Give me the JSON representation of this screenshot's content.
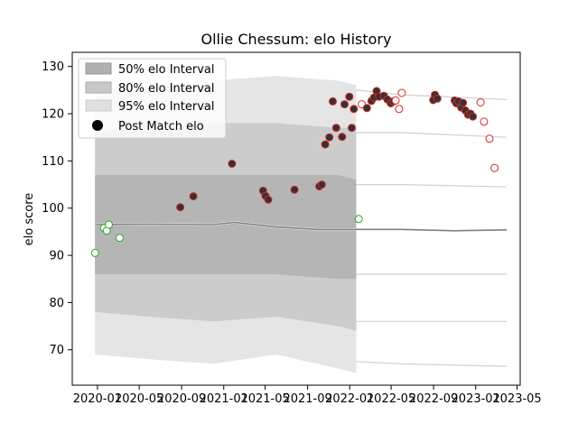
{
  "chart_data": {
    "type": "scatter",
    "title": "Ollie Chessum: elo History",
    "xlabel": "",
    "ylabel": "elo score",
    "xlim": [
      "2019-10-20",
      "2023-05-10"
    ],
    "ylim": [
      62.5,
      133
    ],
    "x_ticks": [
      "2020-01",
      "2020-05",
      "2020-09",
      "2021-01",
      "2021-05",
      "2021-09",
      "2022-01",
      "2022-05",
      "2022-09",
      "2023-01",
      "2023-05"
    ],
    "y_ticks": [
      70,
      80,
      90,
      100,
      110,
      120,
      130
    ],
    "legend": {
      "placement": "top-left",
      "entries": [
        {
          "label": "50% elo Interval",
          "color": "#b0b0b0"
        },
        {
          "label": "80% elo Interval",
          "color": "#c8c8c8"
        },
        {
          "label": "95% elo Interval",
          "color": "#e0e0e0"
        },
        {
          "label": "Post Match elo",
          "color": "#000000"
        }
      ]
    },
    "colors": {
      "win_edge": "#d62728",
      "loss_edge": "#2ca02c",
      "filled": "#333333",
      "band": "#bfbfbf",
      "line": "#808080"
    },
    "bands": [
      {
        "name": "95% elo Interval",
        "fill": "#e0e0e0",
        "x": [
          "2019-12-25",
          "2020-06-01",
          "2020-12-01",
          "2021-06-01",
          "2021-12-01",
          "2022-01-20"
        ],
        "lower": [
          69,
          68,
          67,
          69,
          66,
          65
        ],
        "upper": [
          125,
          126,
          127,
          128,
          127,
          126
        ]
      },
      {
        "name": "80% elo Interval",
        "fill": "#c8c8c8",
        "x": [
          "2019-12-25",
          "2020-06-01",
          "2020-12-01",
          "2021-06-01",
          "2021-12-01",
          "2022-01-20"
        ],
        "lower": [
          78,
          77,
          76,
          77,
          75,
          74
        ],
        "upper": [
          116,
          117,
          118,
          118,
          117,
          117
        ]
      },
      {
        "name": "50% elo Interval",
        "fill": "#b0b0b0",
        "x": [
          "2019-12-25",
          "2020-06-01",
          "2020-12-01",
          "2021-06-01",
          "2021-12-01",
          "2022-01-20"
        ],
        "lower": [
          86,
          86,
          86,
          86,
          85,
          85
        ],
        "upper": [
          107,
          107,
          107,
          107,
          107,
          106
        ]
      }
    ],
    "median_line": {
      "x": [
        "2019-12-25",
        "2020-06-01",
        "2020-12-01",
        "2021-02-01",
        "2021-06-01",
        "2021-10-01",
        "2022-01-01",
        "2022-06-01",
        "2022-11-01",
        "2023-04-01"
      ],
      "y": [
        96.5,
        96.6,
        96.5,
        97,
        96,
        95.5,
        95.5,
        95.5,
        95.2,
        95.4
      ]
    },
    "right_lines": [
      {
        "x": [
          "2022-01-20",
          "2022-06-01",
          "2023-04-01"
        ],
        "y": [
          125,
          124,
          123
        ]
      },
      {
        "x": [
          "2022-01-20",
          "2022-06-01",
          "2023-04-01"
        ],
        "y": [
          116,
          116,
          115
        ]
      },
      {
        "x": [
          "2022-01-20",
          "2022-06-01",
          "2023-04-01"
        ],
        "y": [
          105,
          105,
          104.5
        ]
      },
      {
        "x": [
          "2022-01-20",
          "2022-06-01",
          "2023-04-01"
        ],
        "y": [
          86,
          86,
          86
        ]
      },
      {
        "x": [
          "2022-01-20",
          "2022-06-01",
          "2023-04-01"
        ],
        "y": [
          76,
          76,
          76
        ]
      },
      {
        "x": [
          "2022-01-20",
          "2022-06-01",
          "2023-04-01"
        ],
        "y": [
          67.5,
          67,
          66.5
        ]
      }
    ],
    "points": [
      {
        "date": "2019-12-25",
        "elo": 90.5,
        "style": "loss"
      },
      {
        "date": "2020-01-20",
        "elo": 95.8,
        "style": "loss"
      },
      {
        "date": "2020-01-28",
        "elo": 95.2,
        "style": "loss"
      },
      {
        "date": "2020-02-03",
        "elo": 96.5,
        "style": "loss"
      },
      {
        "date": "2020-03-05",
        "elo": 93.7,
        "style": "loss"
      },
      {
        "date": "2020-08-28",
        "elo": 100.2,
        "style": "filled"
      },
      {
        "date": "2020-10-05",
        "elo": 102.5,
        "style": "filled"
      },
      {
        "date": "2021-01-25",
        "elo": 109.4,
        "style": "filled"
      },
      {
        "date": "2021-04-25",
        "elo": 103.7,
        "style": "filled"
      },
      {
        "date": "2021-05-02",
        "elo": 102.6,
        "style": "filled"
      },
      {
        "date": "2021-05-10",
        "elo": 101.8,
        "style": "filled"
      },
      {
        "date": "2021-07-25",
        "elo": 103.9,
        "style": "filled"
      },
      {
        "date": "2021-10-05",
        "elo": 104.6,
        "style": "filled"
      },
      {
        "date": "2021-10-12",
        "elo": 105.0,
        "style": "filled"
      },
      {
        "date": "2021-10-22",
        "elo": 113.5,
        "style": "filled"
      },
      {
        "date": "2021-11-03",
        "elo": 115.0,
        "style": "filled"
      },
      {
        "date": "2021-11-13",
        "elo": 122.6,
        "style": "filled"
      },
      {
        "date": "2021-11-23",
        "elo": 117.0,
        "style": "filled"
      },
      {
        "date": "2021-12-10",
        "elo": 115.1,
        "style": "filled"
      },
      {
        "date": "2021-12-17",
        "elo": 122.0,
        "style": "filled"
      },
      {
        "date": "2021-12-31",
        "elo": 123.6,
        "style": "filled"
      },
      {
        "date": "2022-01-07",
        "elo": 117.0,
        "style": "filled"
      },
      {
        "date": "2022-01-13",
        "elo": 121.0,
        "style": "filled"
      },
      {
        "date": "2022-02-05",
        "elo": 122.0,
        "style": "win"
      },
      {
        "date": "2022-02-20",
        "elo": 121.2,
        "style": "filled"
      },
      {
        "date": "2022-01-27",
        "elo": 97.7,
        "style": "loss"
      },
      {
        "date": "2022-03-05",
        "elo": 122.7,
        "style": "filled"
      },
      {
        "date": "2022-03-12",
        "elo": 123.4,
        "style": "filled"
      },
      {
        "date": "2022-03-20",
        "elo": 124.8,
        "style": "filled"
      },
      {
        "date": "2022-03-27",
        "elo": 123.6,
        "style": "filled"
      },
      {
        "date": "2022-04-10",
        "elo": 123.8,
        "style": "filled"
      },
      {
        "date": "2022-04-20",
        "elo": 123.0,
        "style": "filled"
      },
      {
        "date": "2022-04-30",
        "elo": 122.2,
        "style": "filled"
      },
      {
        "date": "2022-05-07",
        "elo": 122.6,
        "style": "filled"
      },
      {
        "date": "2022-05-14",
        "elo": 122.8,
        "style": "win"
      },
      {
        "date": "2022-05-24",
        "elo": 121.0,
        "style": "win"
      },
      {
        "date": "2022-06-01",
        "elo": 124.4,
        "style": "win"
      },
      {
        "date": "2022-08-31",
        "elo": 122.9,
        "style": "filled"
      },
      {
        "date": "2022-09-05",
        "elo": 124.0,
        "style": "filled"
      },
      {
        "date": "2022-09-12",
        "elo": 123.2,
        "style": "filled"
      },
      {
        "date": "2022-11-01",
        "elo": 122.8,
        "style": "filled"
      },
      {
        "date": "2022-11-06",
        "elo": 122.2,
        "style": "filled"
      },
      {
        "date": "2022-11-12",
        "elo": 122.6,
        "style": "filled"
      },
      {
        "date": "2022-11-20",
        "elo": 121.3,
        "style": "filled"
      },
      {
        "date": "2022-11-25",
        "elo": 122.3,
        "style": "filled"
      },
      {
        "date": "2022-12-02",
        "elo": 120.7,
        "style": "filled"
      },
      {
        "date": "2022-12-10",
        "elo": 119.8,
        "style": "filled"
      },
      {
        "date": "2022-12-17",
        "elo": 120.0,
        "style": "filled"
      },
      {
        "date": "2022-12-24",
        "elo": 119.4,
        "style": "filled"
      },
      {
        "date": "2023-01-15",
        "elo": 122.4,
        "style": "win"
      },
      {
        "date": "2023-01-25",
        "elo": 118.3,
        "style": "win"
      },
      {
        "date": "2023-02-10",
        "elo": 114.7,
        "style": "win"
      },
      {
        "date": "2023-02-25",
        "elo": 108.5,
        "style": "win"
      }
    ]
  }
}
